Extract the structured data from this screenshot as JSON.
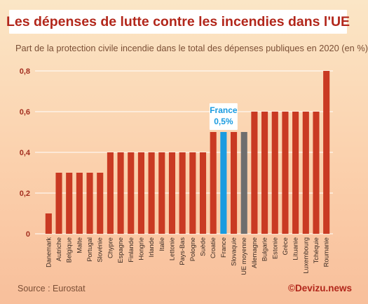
{
  "title": "Les dépenses de lutte contre les incendies dans l'UE",
  "subtitle": "Part de la protection civile incendie dans le total des dépenses publiques en 2020 (en %)",
  "source": "Source : Eurostat",
  "credit": "©Devizu.news",
  "colors": {
    "bar": "#c93a23",
    "highlight": "#1a9be0",
    "average": "#6e6e6e",
    "grid": "#ffffff",
    "label": "#a32e1f"
  },
  "chart_data": {
    "type": "bar",
    "title": "Les dépenses de lutte contre les incendies dans l'UE",
    "subtitle": "Part de la protection civile incendie dans le total des dépenses publiques en 2020 (en %)",
    "ylim": [
      0,
      0.8
    ],
    "yticks": [
      "0",
      "0,2",
      "0,4",
      "0,6",
      "0,8"
    ],
    "grid": true,
    "categories": [
      "Danemark",
      "Autriche",
      "Belgique",
      "Malte",
      "Portugal",
      "Slovénie",
      "Chypre",
      "Espagne",
      "Finlande",
      "Hongrie",
      "Irlande",
      "Italie",
      "Lettonie",
      "Pays-Bas",
      "Pologne",
      "Suède",
      "Croatie",
      "France",
      "Slovaquie",
      "UE moyenne",
      "Allemagne",
      "Bulgarie",
      "Estonie",
      "Grèce",
      "Lituanie",
      "Luxembourg",
      "Tchéquie",
      "Roumanie"
    ],
    "values": [
      0.1,
      0.3,
      0.3,
      0.3,
      0.3,
      0.3,
      0.4,
      0.4,
      0.4,
      0.4,
      0.4,
      0.4,
      0.4,
      0.4,
      0.4,
      0.4,
      0.5,
      0.5,
      0.5,
      0.5,
      0.6,
      0.6,
      0.6,
      0.6,
      0.6,
      0.6,
      0.6,
      0.8
    ],
    "highlight": "France",
    "average": "UE moyenne",
    "annotation": {
      "target": "France",
      "lines": [
        "France",
        "0,5%"
      ]
    }
  }
}
